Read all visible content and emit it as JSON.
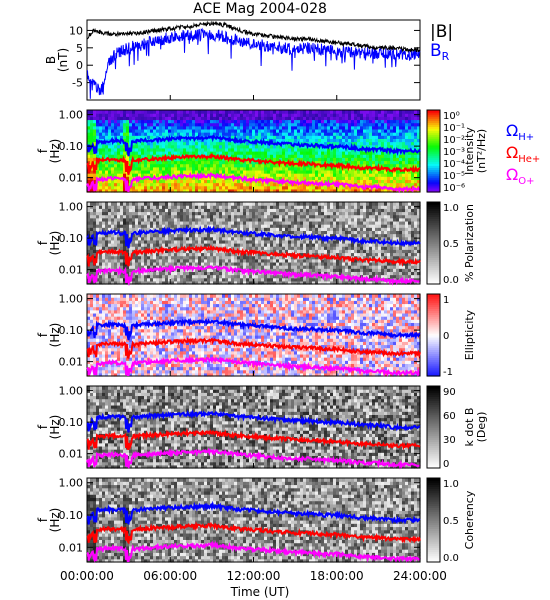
{
  "title": "ACE Mag 2004-028",
  "xlabel": "Time (UT)",
  "x_ticks": [
    "00:00:00",
    "06:00:00",
    "12:00:00",
    "18:00:00",
    "24:00:00"
  ],
  "freq_ticks": [
    "1.00",
    "0.10",
    "0.01"
  ],
  "colors": {
    "B_total": "#000000",
    "B_R": "#0000ff",
    "H": "#0000ff",
    "He": "#ff0000",
    "O": "#ff00ff"
  },
  "legend": {
    "B_total": "|B|",
    "B_R": "B",
    "B_R_sub": "R",
    "omega": "Ω",
    "H_sub": "H+",
    "He_sub": "He+",
    "O_sub": "O+"
  },
  "chart_data": [
    {
      "type": "line",
      "panel": "B",
      "ylabel": "B",
      "yunit": "(nT)",
      "ylim": [
        -10,
        13
      ],
      "yticks": [
        "10",
        "5",
        "0",
        "-5"
      ],
      "x": [
        0,
        0.5,
        1,
        1.5,
        2,
        3,
        4,
        5,
        6,
        7,
        8,
        9,
        10,
        11,
        12,
        13,
        14,
        15,
        16,
        17,
        18,
        19,
        20,
        21,
        22,
        23,
        24
      ],
      "series": [
        {
          "name": "|B|",
          "values": [
            8,
            10,
            9.5,
            9,
            9,
            9,
            9.5,
            10,
            10.5,
            11,
            11.5,
            12,
            11.5,
            10,
            9,
            8.5,
            8,
            7.5,
            7.5,
            7,
            6.5,
            6,
            5.5,
            5,
            5,
            4.5,
            4.5
          ]
        },
        {
          "name": "B_R",
          "values": [
            -3,
            -5,
            -8,
            0,
            3,
            5,
            6,
            7,
            8,
            8.5,
            8.5,
            9,
            8,
            7,
            6,
            5.5,
            5,
            4.5,
            5,
            4.5,
            4,
            4,
            3.5,
            3.5,
            3,
            3,
            3
          ]
        }
      ]
    },
    {
      "type": "heatmap",
      "panel": "intensity",
      "ylabel": "f",
      "yunit": "(Hz)",
      "colorbar_label": "Intensity",
      "colorbar_unit": "(nT²/Hz)",
      "colorbar_ticks": [
        "10⁰",
        "10⁻¹",
        "10⁻²",
        "10⁻³",
        "10⁻⁴",
        "10⁻⁵",
        "10⁻⁶"
      ]
    },
    {
      "type": "heatmap",
      "panel": "polarization",
      "ylabel": "f",
      "yunit": "(Hz)",
      "colorbar_label": "% Polarization",
      "colorbar_ticks": [
        "1.0",
        "0.5",
        "0.0"
      ]
    },
    {
      "type": "heatmap",
      "panel": "ellipticity",
      "ylabel": "f",
      "yunit": "(Hz)",
      "colorbar_label": "Ellipticity",
      "colorbar_ticks": [
        "1",
        "0",
        "-1"
      ]
    },
    {
      "type": "heatmap",
      "panel": "kdotb",
      "ylabel": "f",
      "yunit": "(Hz)",
      "colorbar_label": "k dot B",
      "colorbar_unit": "(Deg)",
      "colorbar_ticks": [
        "90",
        "60",
        "30",
        "0"
      ]
    },
    {
      "type": "heatmap",
      "panel": "coherency",
      "ylabel": "f",
      "yunit": "(Hz)",
      "colorbar_label": "Coherency",
      "colorbar_ticks": [
        "1.0",
        "0.5",
        "0.0"
      ]
    },
    {
      "type": "line",
      "panel": "gyrofrequencies",
      "x": [
        0,
        0.5,
        1,
        1.5,
        2,
        3,
        4,
        5,
        6,
        7,
        8,
        9,
        10,
        11,
        12,
        13,
        14,
        15,
        16,
        17,
        18,
        19,
        20,
        21,
        22,
        23,
        24
      ],
      "series": [
        {
          "name": "H+",
          "values": [
            0.12,
            0.15,
            0.14,
            0.15,
            0.15,
            0.14,
            0.15,
            0.16,
            0.17,
            0.18,
            0.18,
            0.19,
            0.17,
            0.15,
            0.14,
            0.13,
            0.12,
            0.11,
            0.11,
            0.1,
            0.1,
            0.09,
            0.08,
            0.08,
            0.07,
            0.07,
            0.07
          ]
        },
        {
          "name": "He+",
          "values": [
            0.03,
            0.037,
            0.035,
            0.037,
            0.037,
            0.035,
            0.037,
            0.04,
            0.042,
            0.045,
            0.045,
            0.047,
            0.042,
            0.037,
            0.035,
            0.032,
            0.03,
            0.028,
            0.028,
            0.025,
            0.025,
            0.022,
            0.02,
            0.02,
            0.018,
            0.018,
            0.018
          ]
        },
        {
          "name": "O+",
          "values": [
            0.0075,
            0.0094,
            0.0087,
            0.0094,
            0.0094,
            0.0087,
            0.0094,
            0.01,
            0.0106,
            0.0112,
            0.0112,
            0.0119,
            0.0106,
            0.0094,
            0.0087,
            0.0081,
            0.0075,
            0.0069,
            0.0069,
            0.0062,
            0.0062,
            0.0056,
            0.005,
            0.005,
            0.0044,
            0.0044,
            0.0044
          ]
        }
      ]
    }
  ]
}
